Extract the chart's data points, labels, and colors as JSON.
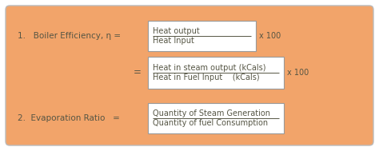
{
  "bg_color": "#F2A46A",
  "box_color": "#FFFFFF",
  "border_color": "#999999",
  "text_color": "#555544",
  "fig_bg": "#FFFFFF",
  "outer_border_color": "#BBBBBB",
  "label1": "1.   Boiler Efficiency, η =",
  "label2": "=",
  "label3": "2.  Evaporation Ratio   =",
  "box1_num": "Heat output",
  "box1_den": "Heat Input",
  "box1_suffix": "x 100",
  "box2_num": "Heat in steam output (kCals)",
  "box2_den": "Heat in Fuel Input    (kCals)",
  "box2_suffix": "x 100",
  "box3_num": "Quantity of Steam Generation",
  "box3_den": "Quantity of fuel Consumption",
  "fontsize": 7.5,
  "small_fontsize": 7.0
}
